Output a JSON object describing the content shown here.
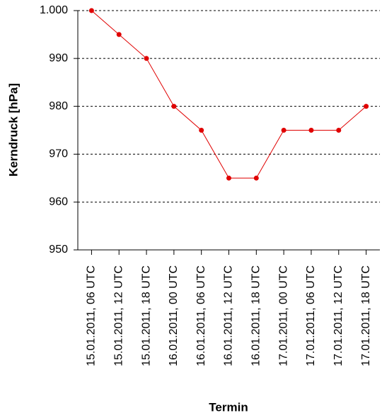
{
  "chart_data": {
    "type": "line",
    "x_label": "Termin",
    "y_label": "Kerndruck [hPa]",
    "categories": [
      "15.01.2011, 06 UTC",
      "15.01.2011, 12 UTC",
      "15.01.2011, 18 UTC",
      "16.01.2011, 00 UTC",
      "16.01.2011, 06 UTC",
      "16.01.2011, 12 UTC",
      "16.01.2011, 18 UTC",
      "17.01.2011, 00 UTC",
      "17.01.2011, 06 UTC",
      "17.01.2011, 12 UTC",
      "17.01.2011, 18 UTC"
    ],
    "values": [
      1000,
      995,
      990,
      980,
      975,
      965,
      965,
      975,
      975,
      975,
      980
    ],
    "color": "#e00000",
    "ylim": [
      950,
      1000
    ],
    "yticks": [
      950,
      960,
      970,
      980,
      990,
      {
        "value": 1000,
        "label": "1.000"
      }
    ],
    "grid": true
  }
}
